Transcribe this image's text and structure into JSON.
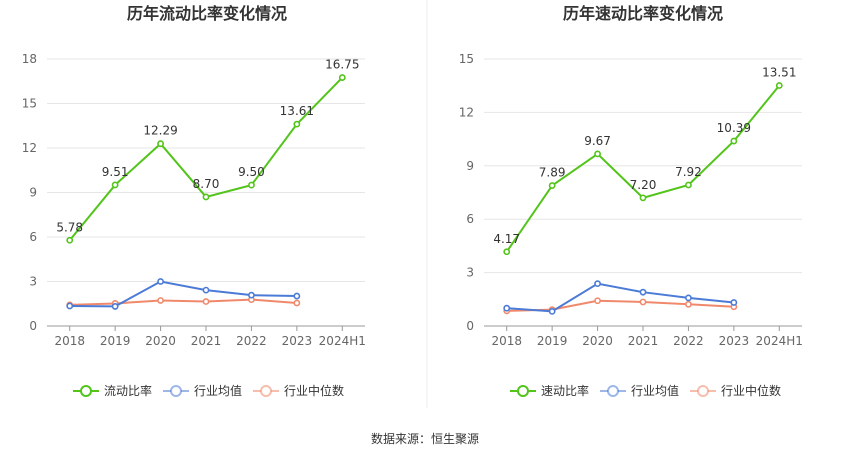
{
  "source_text": "数据来源：恒生聚源",
  "colors": {
    "main": "#52c41a",
    "avg": "#4b7bd6",
    "median": "#f0896b",
    "grid": "#e6e6e6",
    "axis": "#999999"
  },
  "chart_data": [
    {
      "type": "line",
      "title": "历年流动比率变化情况",
      "categories": [
        "2018",
        "2019",
        "2020",
        "2021",
        "2022",
        "2023",
        "2024H1"
      ],
      "ylim": [
        0,
        18
      ],
      "yticks": [
        0,
        3,
        6,
        9,
        12,
        15,
        18
      ],
      "ytick_labels": [
        "0",
        "3",
        "6",
        "9",
        "12",
        "15",
        "18"
      ],
      "grid": true,
      "legend_position": "bottom",
      "series": [
        {
          "name": "流动比率",
          "values": [
            5.78,
            9.51,
            12.29,
            8.7,
            9.5,
            13.61,
            16.75
          ],
          "labels": [
            "5.78",
            "9.51",
            "12.29",
            "8.70",
            "9.50",
            "13.61",
            "16.75"
          ]
        },
        {
          "name": "行业均值",
          "values": [
            1.35,
            1.32,
            3.0,
            2.42,
            2.08,
            2.02,
            null
          ]
        },
        {
          "name": "行业中位数",
          "values": [
            1.42,
            1.52,
            1.72,
            1.65,
            1.78,
            1.55,
            null
          ]
        }
      ]
    },
    {
      "type": "line",
      "title": "历年速动比率变化情况",
      "categories": [
        "2018",
        "2019",
        "2020",
        "2021",
        "2022",
        "2023",
        "2024H1"
      ],
      "ylim": [
        0,
        15
      ],
      "yticks": [
        0,
        3,
        6,
        9,
        12,
        15
      ],
      "ytick_labels": [
        "0",
        "3",
        "6",
        "9",
        "12",
        "15"
      ],
      "grid": true,
      "legend_position": "bottom",
      "series": [
        {
          "name": "速动比率",
          "values": [
            4.17,
            7.89,
            9.67,
            7.2,
            7.92,
            10.39,
            13.51
          ],
          "labels": [
            "4.17",
            "7.89",
            "9.67",
            "7.20",
            "7.92",
            "10.39",
            "13.51"
          ]
        },
        {
          "name": "行业均值",
          "values": [
            1.0,
            0.82,
            2.38,
            1.9,
            1.58,
            1.32,
            null
          ]
        },
        {
          "name": "行业中位数",
          "values": [
            0.85,
            0.92,
            1.42,
            1.35,
            1.22,
            1.08,
            null
          ]
        }
      ]
    }
  ]
}
